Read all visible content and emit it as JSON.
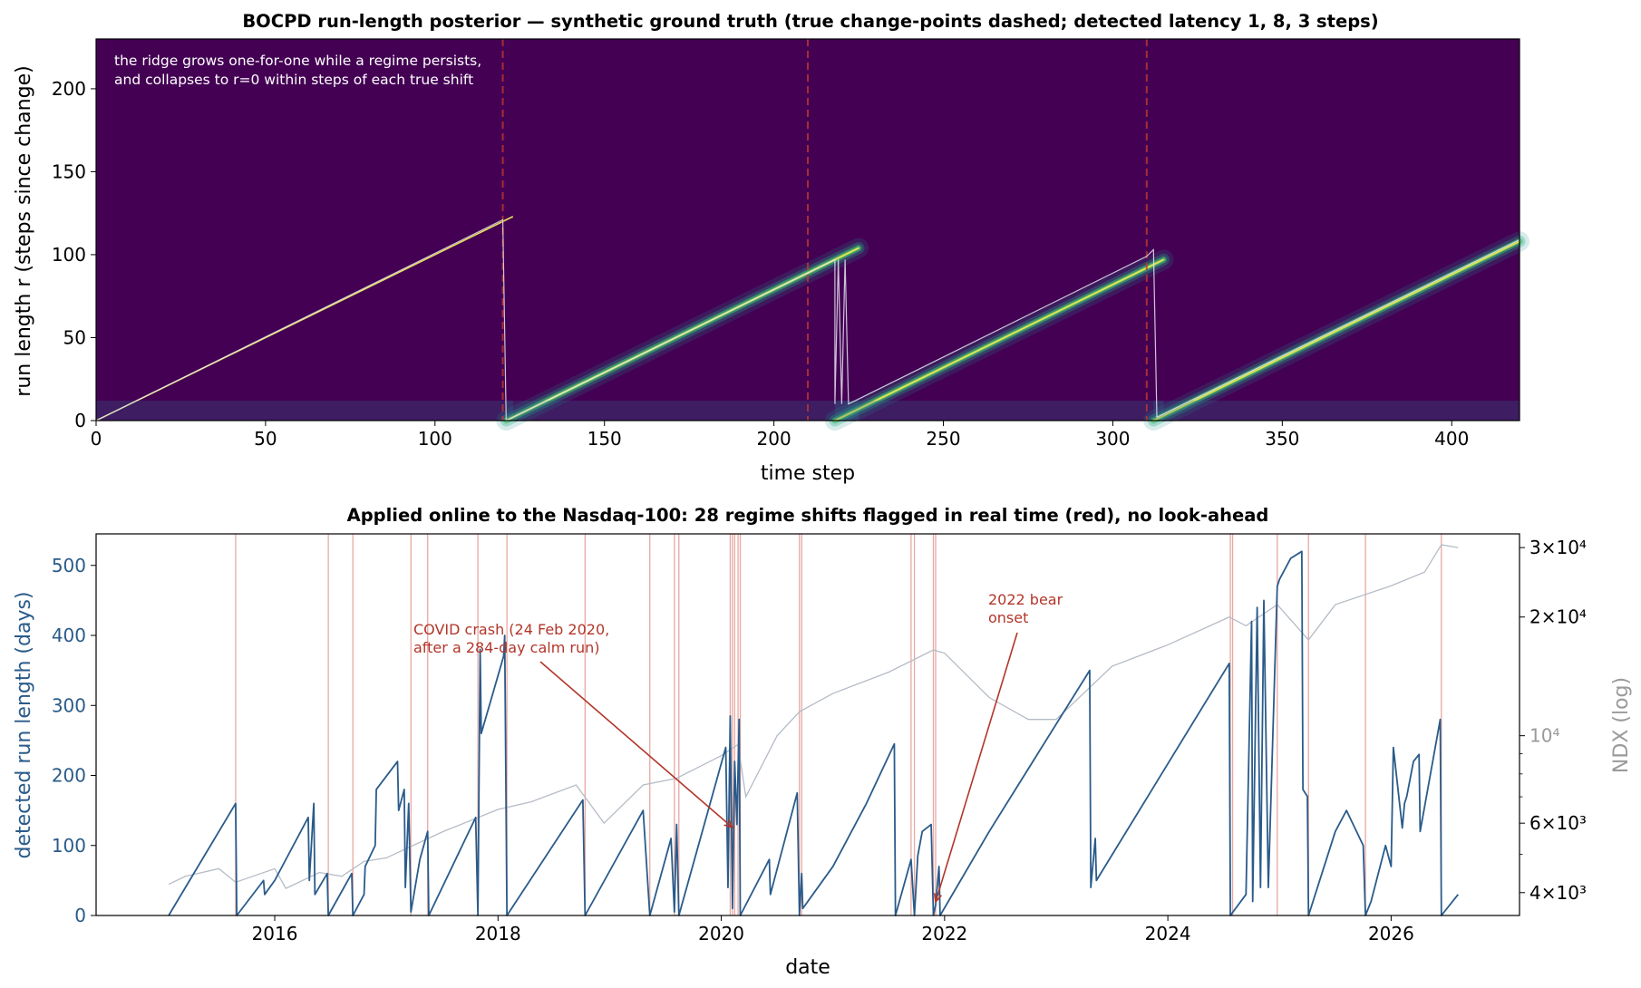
{
  "chart_data": [
    {
      "type": "heatmap",
      "title": "BOCPD run-length posterior — synthetic ground truth (true change-points dashed; detected latency 1, 8, 3 steps)",
      "xlabel": "time step",
      "ylabel": "run length  r  (steps since change)",
      "xlim": [
        0,
        420
      ],
      "ylim": [
        0,
        230
      ],
      "xticks": [
        "0",
        "50",
        "100",
        "150",
        "200",
        "250",
        "300",
        "350",
        "400"
      ],
      "yticks": [
        "0",
        "50",
        "100",
        "150",
        "200"
      ],
      "true_change_points": [
        120,
        210,
        310
      ],
      "detected_latency_steps": [
        1,
        8,
        3
      ],
      "annotation": [
        "the ridge grows one-for-one while a regime persists,",
        "and collapses to r=0 within steps of each true shift"
      ],
      "ridges": [
        {
          "x0": 0,
          "x1": 123,
          "r0": 0
        },
        {
          "x0": 121,
          "x1": 225,
          "r0": 0
        },
        {
          "x0": 218,
          "x1": 315,
          "r0": 0
        },
        {
          "x0": 312,
          "x1": 420,
          "r0": 0
        }
      ],
      "map_path": [
        [
          0,
          0
        ],
        [
          120,
          121
        ],
        [
          121,
          0
        ],
        [
          122,
          1
        ],
        [
          218,
          97
        ],
        [
          218,
          10
        ],
        [
          219,
          97
        ],
        [
          220,
          10
        ],
        [
          221,
          97
        ],
        [
          222,
          10
        ],
        [
          224,
          12
        ],
        [
          310,
          99
        ],
        [
          312,
          103
        ],
        [
          313,
          2
        ],
        [
          420,
          109
        ]
      ],
      "colormap": "viridis",
      "grid": false
    },
    {
      "type": "line",
      "title": "Applied online to the Nasdaq-100: 28 regime shifts flagged in real time (red), no look-ahead",
      "xlabel": "date",
      "ylabel": "detected run length (days)",
      "ylabel_right": "NDX (log)",
      "xlim": [
        2014.4,
        2027.15
      ],
      "ylim": [
        0,
        545
      ],
      "ylim_right": [
        3500,
        32500
      ],
      "right_scale": "log",
      "xticks": [
        "2016",
        "2018",
        "2020",
        "2022",
        "2024",
        "2026"
      ],
      "yticks": [
        "0",
        "100",
        "200",
        "300",
        "400",
        "500"
      ],
      "yticks_right": [
        "4×10³",
        "6×10³",
        "10⁴",
        "2×10⁴",
        "3×10⁴"
      ],
      "flagged_shifts": [
        2015.65,
        2016.48,
        2016.7,
        2017.22,
        2017.37,
        2017.82,
        2018.08,
        2018.78,
        2019.36,
        2019.58,
        2019.62,
        2020.08,
        2020.1,
        2020.12,
        2020.15,
        2020.17,
        2020.7,
        2020.72,
        2021.7,
        2021.73,
        2021.9,
        2021.92,
        2024.56,
        2024.58,
        2024.98,
        2025.26,
        2025.77,
        2026.45
      ],
      "series": [
        {
          "name": "detected run length (days)",
          "color": "#2a5b8a",
          "points": [
            [
              2015.05,
              0
            ],
            [
              2015.65,
              160
            ],
            [
              2015.66,
              0
            ],
            [
              2015.9,
              50
            ],
            [
              2015.91,
              30
            ],
            [
              2016.0,
              50
            ],
            [
              2016.3,
              140
            ],
            [
              2016.31,
              50
            ],
            [
              2016.35,
              160
            ],
            [
              2016.36,
              30
            ],
            [
              2016.47,
              60
            ],
            [
              2016.48,
              0
            ],
            [
              2016.69,
              60
            ],
            [
              2016.7,
              0
            ],
            [
              2016.8,
              30
            ],
            [
              2016.81,
              70
            ],
            [
              2016.9,
              100
            ],
            [
              2016.91,
              180
            ],
            [
              2017.1,
              220
            ],
            [
              2017.11,
              150
            ],
            [
              2017.16,
              180
            ],
            [
              2017.17,
              40
            ],
            [
              2017.2,
              160
            ],
            [
              2017.22,
              5
            ],
            [
              2017.3,
              80
            ],
            [
              2017.37,
              120
            ],
            [
              2017.38,
              0
            ],
            [
              2017.8,
              140
            ],
            [
              2017.82,
              0
            ],
            [
              2017.84,
              380
            ],
            [
              2017.85,
              260
            ],
            [
              2018.05,
              370
            ],
            [
              2018.06,
              400
            ],
            [
              2018.08,
              0
            ],
            [
              2018.76,
              165
            ],
            [
              2018.78,
              0
            ],
            [
              2019.3,
              150
            ],
            [
              2019.36,
              0
            ],
            [
              2019.55,
              110
            ],
            [
              2019.58,
              5
            ],
            [
              2019.6,
              130
            ],
            [
              2019.62,
              0
            ],
            [
              2020.04,
              240
            ],
            [
              2020.06,
              40
            ],
            [
              2020.08,
              285
            ],
            [
              2020.1,
              10
            ],
            [
              2020.12,
              220
            ],
            [
              2020.14,
              130
            ],
            [
              2020.16,
              280
            ],
            [
              2020.17,
              0
            ],
            [
              2020.43,
              80
            ],
            [
              2020.44,
              30
            ],
            [
              2020.68,
              175
            ],
            [
              2020.7,
              0
            ],
            [
              2020.72,
              60
            ],
            [
              2020.73,
              10
            ],
            [
              2021.0,
              70
            ],
            [
              2021.3,
              160
            ],
            [
              2021.55,
              245
            ],
            [
              2021.56,
              0
            ],
            [
              2021.7,
              80
            ],
            [
              2021.73,
              0
            ],
            [
              2021.76,
              85
            ],
            [
              2021.8,
              120
            ],
            [
              2021.88,
              130
            ],
            [
              2021.9,
              0
            ],
            [
              2021.92,
              15
            ],
            [
              2021.95,
              70
            ],
            [
              2021.96,
              0
            ],
            [
              2022.4,
              120
            ],
            [
              2023.3,
              350
            ],
            [
              2023.31,
              40
            ],
            [
              2023.35,
              110
            ],
            [
              2023.36,
              50
            ],
            [
              2024.55,
              360
            ],
            [
              2024.56,
              0
            ],
            [
              2024.7,
              30
            ],
            [
              2024.75,
              420
            ],
            [
              2024.76,
              20
            ],
            [
              2024.8,
              440
            ],
            [
              2024.83,
              40
            ],
            [
              2024.86,
              450
            ],
            [
              2024.9,
              40
            ],
            [
              2024.98,
              470
            ],
            [
              2025.0,
              480
            ],
            [
              2025.1,
              510
            ],
            [
              2025.2,
              520
            ],
            [
              2025.21,
              180
            ],
            [
              2025.25,
              170
            ],
            [
              2025.26,
              0
            ],
            [
              2025.5,
              120
            ],
            [
              2025.6,
              150
            ],
            [
              2025.75,
              100
            ],
            [
              2025.77,
              0
            ],
            [
              2025.82,
              20
            ],
            [
              2025.95,
              100
            ],
            [
              2026.0,
              70
            ],
            [
              2026.02,
              240
            ],
            [
              2026.1,
              125
            ],
            [
              2026.12,
              160
            ],
            [
              2026.14,
              170
            ],
            [
              2026.2,
              220
            ],
            [
              2026.25,
              230
            ],
            [
              2026.26,
              120
            ],
            [
              2026.44,
              280
            ],
            [
              2026.45,
              0
            ],
            [
              2026.6,
              30
            ]
          ]
        },
        {
          "name": "NDX (log)",
          "color": "#b5bcc6",
          "points": [
            [
              2015.05,
              4200
            ],
            [
              2015.2,
              4400
            ],
            [
              2015.5,
              4600
            ],
            [
              2015.65,
              4250
            ],
            [
              2016.0,
              4600
            ],
            [
              2016.1,
              4100
            ],
            [
              2016.4,
              4500
            ],
            [
              2016.6,
              4400
            ],
            [
              2016.8,
              4800
            ],
            [
              2017.0,
              4900
            ],
            [
              2017.5,
              5700
            ],
            [
              2018.0,
              6500
            ],
            [
              2018.3,
              6800
            ],
            [
              2018.7,
              7500
            ],
            [
              2018.95,
              6000
            ],
            [
              2019.3,
              7500
            ],
            [
              2019.6,
              7800
            ],
            [
              2020.0,
              8900
            ],
            [
              2020.15,
              9500
            ],
            [
              2020.22,
              7000
            ],
            [
              2020.5,
              10000
            ],
            [
              2020.7,
              11500
            ],
            [
              2021.0,
              12800
            ],
            [
              2021.5,
              14500
            ],
            [
              2021.9,
              16500
            ],
            [
              2022.0,
              16200
            ],
            [
              2022.4,
              12500
            ],
            [
              2022.75,
              11000
            ],
            [
              2023.0,
              11000
            ],
            [
              2023.5,
              15000
            ],
            [
              2024.0,
              17000
            ],
            [
              2024.55,
              20000
            ],
            [
              2024.7,
              19000
            ],
            [
              2024.98,
              21500
            ],
            [
              2025.26,
              17500
            ],
            [
              2025.5,
              21500
            ],
            [
              2026.0,
              24000
            ],
            [
              2026.3,
              26000
            ],
            [
              2026.45,
              30500
            ],
            [
              2026.6,
              30000
            ]
          ]
        }
      ],
      "annotations": [
        {
          "text": [
            "COVID crash (24 Feb 2020,",
            "after a 284-day calm run)"
          ],
          "target": [
            2020.15,
            120
          ]
        },
        {
          "text": [
            "2022 bear",
            "onset"
          ],
          "target": [
            2021.88,
            20
          ]
        }
      ],
      "colors": {
        "shift": "#e8a8a2",
        "arrow": "#b2362a",
        "run_length": "#2a5b8a",
        "ndx": "#b5bcc6"
      },
      "grid": false
    }
  ]
}
